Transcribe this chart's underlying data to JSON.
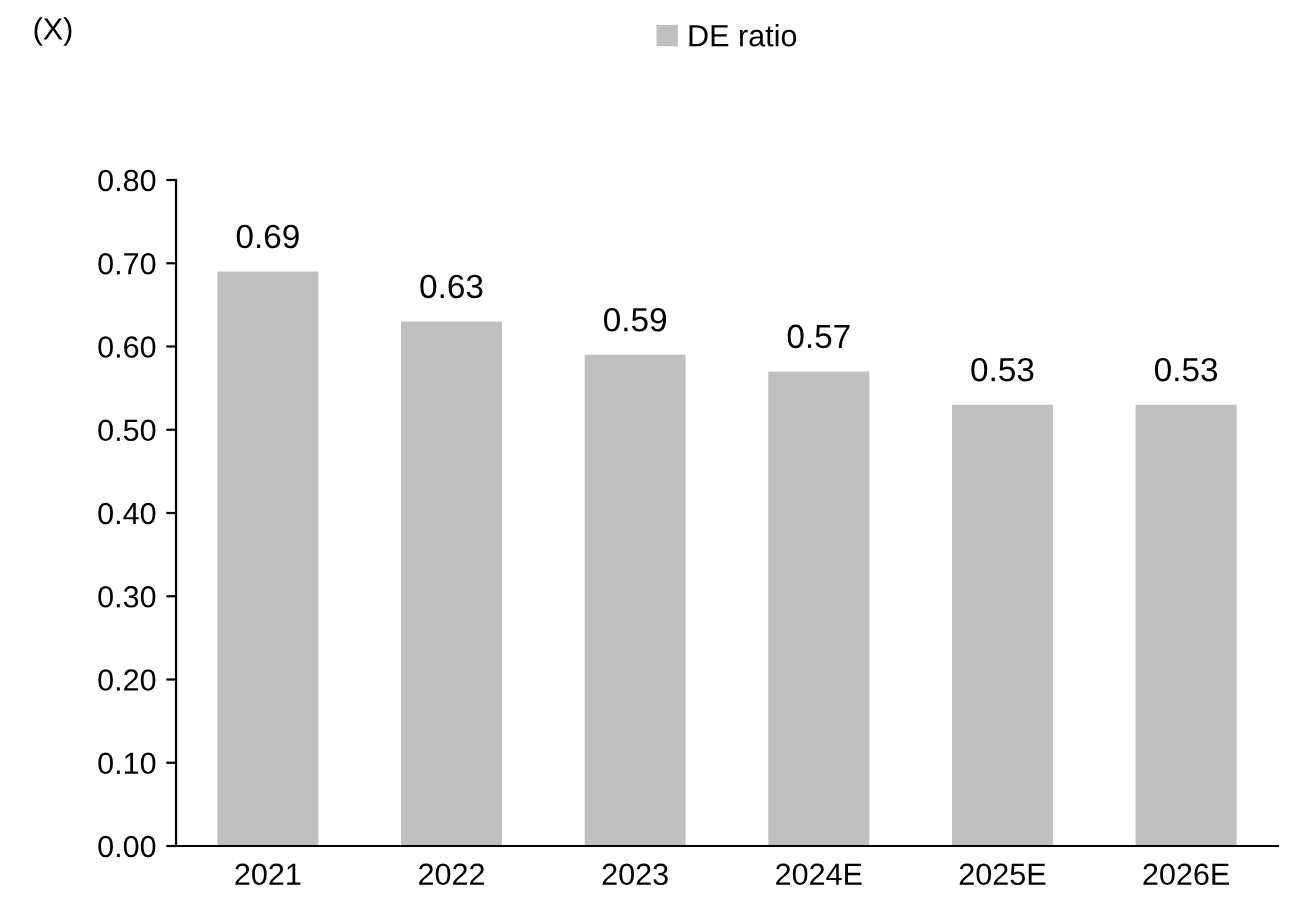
{
  "chart_data": {
    "type": "bar",
    "ylabel": "(X)",
    "categories": [
      "2021",
      "2022",
      "2023",
      "2024E",
      "2025E",
      "2026E"
    ],
    "series": [
      {
        "name": "DE ratio",
        "color": "#bfbfbf",
        "values": [
          0.69,
          0.63,
          0.59,
          0.57,
          0.53,
          0.53
        ]
      }
    ],
    "ylim": [
      0,
      0.8
    ],
    "yticks": [
      {
        "value": 0,
        "label": "0.00"
      },
      {
        "value": 0.1,
        "label": "0.10"
      },
      {
        "value": 0.2,
        "label": "0.20"
      },
      {
        "value": 0.3,
        "label": "0.30"
      },
      {
        "value": 0.4,
        "label": "0.40"
      },
      {
        "value": 0.5,
        "label": "0.50"
      },
      {
        "value": 0.6,
        "label": "0.60"
      },
      {
        "value": 0.7,
        "label": "0.70"
      },
      {
        "value": 0.8,
        "label": "0.80"
      }
    ],
    "data_labels": true,
    "legend": "top",
    "grid": false
  }
}
